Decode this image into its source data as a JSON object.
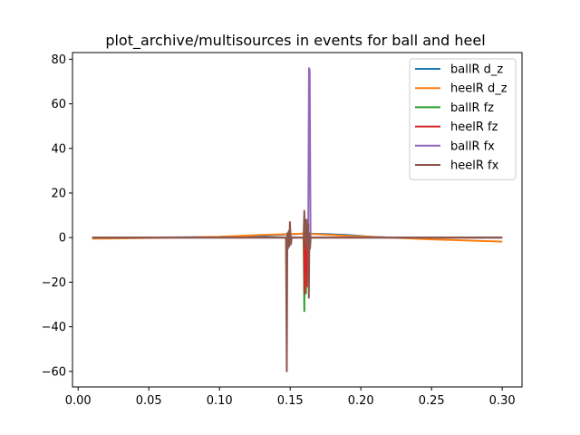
{
  "chart_data": {
    "type": "line",
    "title": "plot_archive/multisources in events for ball and heel",
    "xlabel": "",
    "ylabel": "",
    "xlim": [
      -0.004,
      0.314
    ],
    "ylim": [
      -67,
      83
    ],
    "xticks": [
      0.0,
      0.05,
      0.1,
      0.15,
      0.2,
      0.25,
      0.3
    ],
    "xtick_labels": [
      "0.00",
      "0.05",
      "0.10",
      "0.15",
      "0.20",
      "0.25",
      "0.30"
    ],
    "yticks": [
      -60,
      -40,
      -20,
      0,
      20,
      40,
      60,
      80
    ],
    "ytick_labels": [
      "−60",
      "−40",
      "−20",
      "0",
      "20",
      "40",
      "60",
      "80"
    ],
    "grid": false,
    "legend_position": "top-right",
    "series": [
      {
        "name": "ballR d_z",
        "color": "#1f77b4",
        "x": [
          0.01,
          0.05,
          0.1,
          0.13,
          0.16,
          0.175,
          0.19,
          0.205,
          0.22,
          0.25,
          0.3
        ],
        "y": [
          0.0,
          0.0,
          0.3,
          0.8,
          1.8,
          1.6,
          1.2,
          0.5,
          0.0,
          0.0,
          0.0
        ]
      },
      {
        "name": "heelR d_z",
        "color": "#ff7f0e",
        "x": [
          0.01,
          0.05,
          0.1,
          0.13,
          0.16,
          0.19,
          0.22,
          0.25,
          0.3
        ],
        "y": [
          -0.5,
          -0.2,
          0.4,
          1.2,
          1.8,
          0.8,
          0.0,
          -0.8,
          -1.8
        ]
      },
      {
        "name": "ballR fz",
        "color": "#2ca02c",
        "x": [
          0.01,
          0.1595,
          0.1598,
          0.16,
          0.1603,
          0.1606,
          0.1609,
          0.1612,
          0.1616,
          0.3
        ],
        "y": [
          0.0,
          0.0,
          -18.0,
          -33.0,
          -8.0,
          5.0,
          -12.0,
          -25.0,
          0.0,
          0.0
        ]
      },
      {
        "name": "heelR fz",
        "color": "#d62728",
        "x": [
          0.01,
          0.1598,
          0.1602,
          0.1606,
          0.161,
          0.1614,
          0.1618,
          0.1622,
          0.1626,
          0.163,
          0.3
        ],
        "y": [
          0.0,
          0.0,
          -25.0,
          8.0,
          -15.0,
          3.0,
          -22.0,
          -6.0,
          -10.0,
          0.0,
          0.0
        ]
      },
      {
        "name": "ballR fx",
        "color": "#9467bd",
        "x": [
          0.01,
          0.162,
          0.1628,
          0.1633,
          0.1638,
          0.1644,
          0.3
        ],
        "y": [
          0.0,
          0.0,
          5.0,
          76.0,
          75.0,
          0.0,
          0.0
        ]
      },
      {
        "name": "heelR fx",
        "color": "#8c564b",
        "x": [
          0.01,
          0.147,
          0.1476,
          0.148,
          0.1484,
          0.149,
          0.1494,
          0.1498,
          0.1502,
          0.1506,
          0.151,
          0.152,
          0.1595,
          0.16,
          0.1604,
          0.1608,
          0.1612,
          0.1616,
          0.162,
          0.1624,
          0.1628,
          0.1632,
          0.1636,
          0.164,
          0.1645,
          0.3
        ],
        "y": [
          0.0,
          0.0,
          -60.0,
          2.0,
          -5.0,
          3.0,
          -4.0,
          7.0,
          2.0,
          -3.0,
          0.0,
          0.0,
          0.0,
          12.0,
          5.0,
          0.0,
          -5.0,
          8.0,
          3.0,
          -2.0,
          6.0,
          -27.0,
          2.0,
          -5.0,
          0.0,
          0.0
        ]
      }
    ]
  }
}
